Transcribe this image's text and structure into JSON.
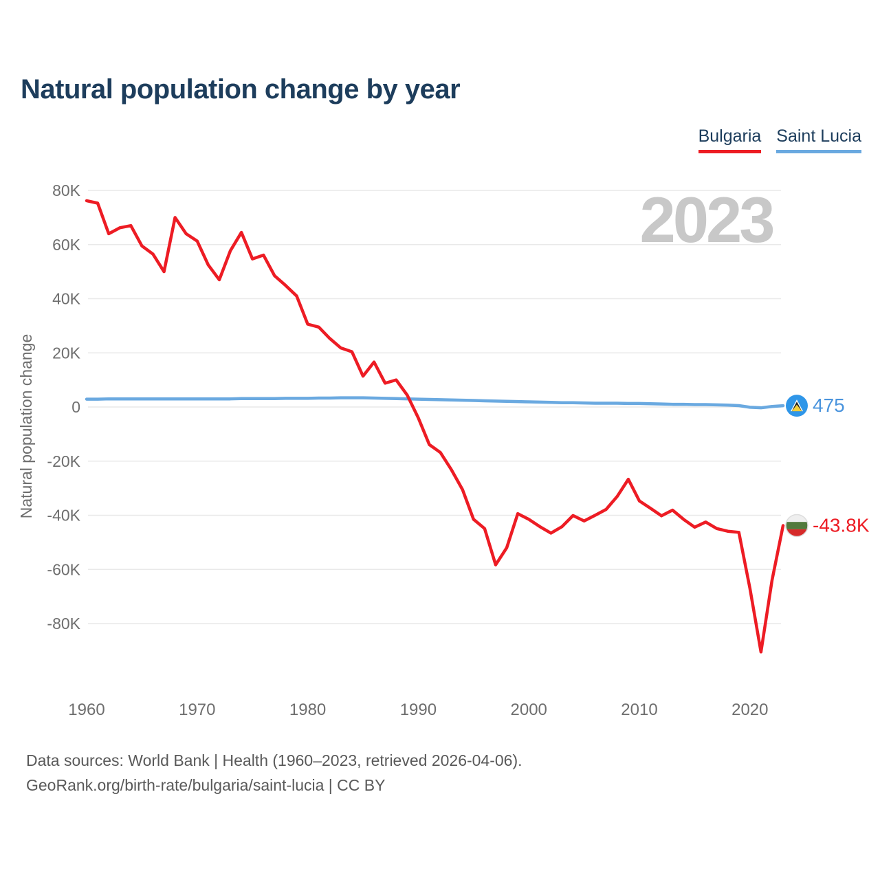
{
  "header": {
    "title": "Natural population change by year"
  },
  "legend": [
    {
      "label": "Bulgaria",
      "color": "#ed1c24"
    },
    {
      "label": "Saint Lucia",
      "color": "#6aa9e0"
    }
  ],
  "watermark": "2023",
  "footer": {
    "line1": "Data sources: World Bank | Health (1960–2023, retrieved 2026-04-06).",
    "line2": "GeoRank.org/birth-rate/bulgaria/saint-lucia | CC BY"
  },
  "chart_data": {
    "type": "line",
    "title": "Natural population change by year",
    "ylabel": "Natural population change",
    "units": "thousands",
    "ylim": [
      -95,
      85
    ],
    "grid": true,
    "yticks": {
      "labels": [
        "80K",
        "60K",
        "40K",
        "20K",
        "0",
        "-20K",
        "-40K",
        "-60K",
        "-80K"
      ],
      "values": [
        80,
        60,
        40,
        20,
        0,
        -20,
        -40,
        -60,
        -80
      ]
    },
    "xticks": [
      "1960",
      "1970",
      "1980",
      "1990",
      "2000",
      "2010",
      "2020"
    ],
    "x": [
      1960,
      1961,
      1962,
      1963,
      1964,
      1965,
      1966,
      1967,
      1968,
      1969,
      1970,
      1971,
      1972,
      1973,
      1974,
      1975,
      1976,
      1977,
      1978,
      1979,
      1980,
      1981,
      1982,
      1983,
      1984,
      1985,
      1986,
      1987,
      1988,
      1989,
      1990,
      1991,
      1992,
      1993,
      1994,
      1995,
      1996,
      1997,
      1998,
      1999,
      2000,
      2001,
      2002,
      2003,
      2004,
      2005,
      2006,
      2007,
      2008,
      2009,
      2010,
      2011,
      2012,
      2013,
      2014,
      2015,
      2016,
      2017,
      2018,
      2019,
      2020,
      2021,
      2022,
      2023
    ],
    "series": [
      {
        "name": "Bulgaria",
        "color": "#ed1c24",
        "values": [
          76.2,
          75.3,
          64.0,
          66.2,
          67.0,
          59.5,
          56.5,
          50.0,
          70.0,
          64.0,
          61.3,
          52.5,
          47.0,
          57.7,
          64.5,
          54.7,
          56.1,
          48.5,
          44.9,
          41.0,
          30.6,
          29.5,
          25.3,
          21.8,
          20.4,
          11.4,
          16.6,
          8.8,
          10.0,
          4.4,
          -4.0,
          -13.9,
          -16.8,
          -23.2,
          -30.5,
          -41.5,
          -44.9,
          -58.3,
          -52.0,
          -39.4,
          -41.5,
          -44.2,
          -46.6,
          -44.2,
          -40.1,
          -42.1,
          -40.0,
          -37.8,
          -33.0,
          -26.7,
          -34.7,
          -37.4,
          -40.2,
          -38.1,
          -41.5,
          -44.4,
          -42.5,
          -44.9,
          -45.9,
          -46.3,
          -67.0,
          -90.5,
          -64.0,
          -43.8
        ]
      },
      {
        "name": "Saint Lucia",
        "color": "#6aa9e0",
        "values": [
          2.9,
          2.9,
          3.0,
          3.0,
          3.0,
          3.0,
          3.0,
          3.0,
          3.0,
          3.0,
          3.0,
          3.0,
          3.0,
          3.0,
          3.1,
          3.1,
          3.1,
          3.1,
          3.2,
          3.2,
          3.2,
          3.3,
          3.3,
          3.4,
          3.4,
          3.4,
          3.3,
          3.2,
          3.1,
          3.0,
          2.9,
          2.8,
          2.7,
          2.6,
          2.5,
          2.4,
          2.3,
          2.2,
          2.1,
          2.0,
          1.9,
          1.8,
          1.7,
          1.6,
          1.6,
          1.5,
          1.4,
          1.4,
          1.4,
          1.3,
          1.3,
          1.2,
          1.1,
          1.0,
          1.0,
          0.9,
          0.9,
          0.8,
          0.7,
          0.5,
          -0.1,
          -0.3,
          0.2,
          0.475
        ]
      }
    ],
    "end_labels": {
      "bulgaria": "-43.8K",
      "saint_lucia": "475"
    },
    "legend_position": "top-right"
  }
}
